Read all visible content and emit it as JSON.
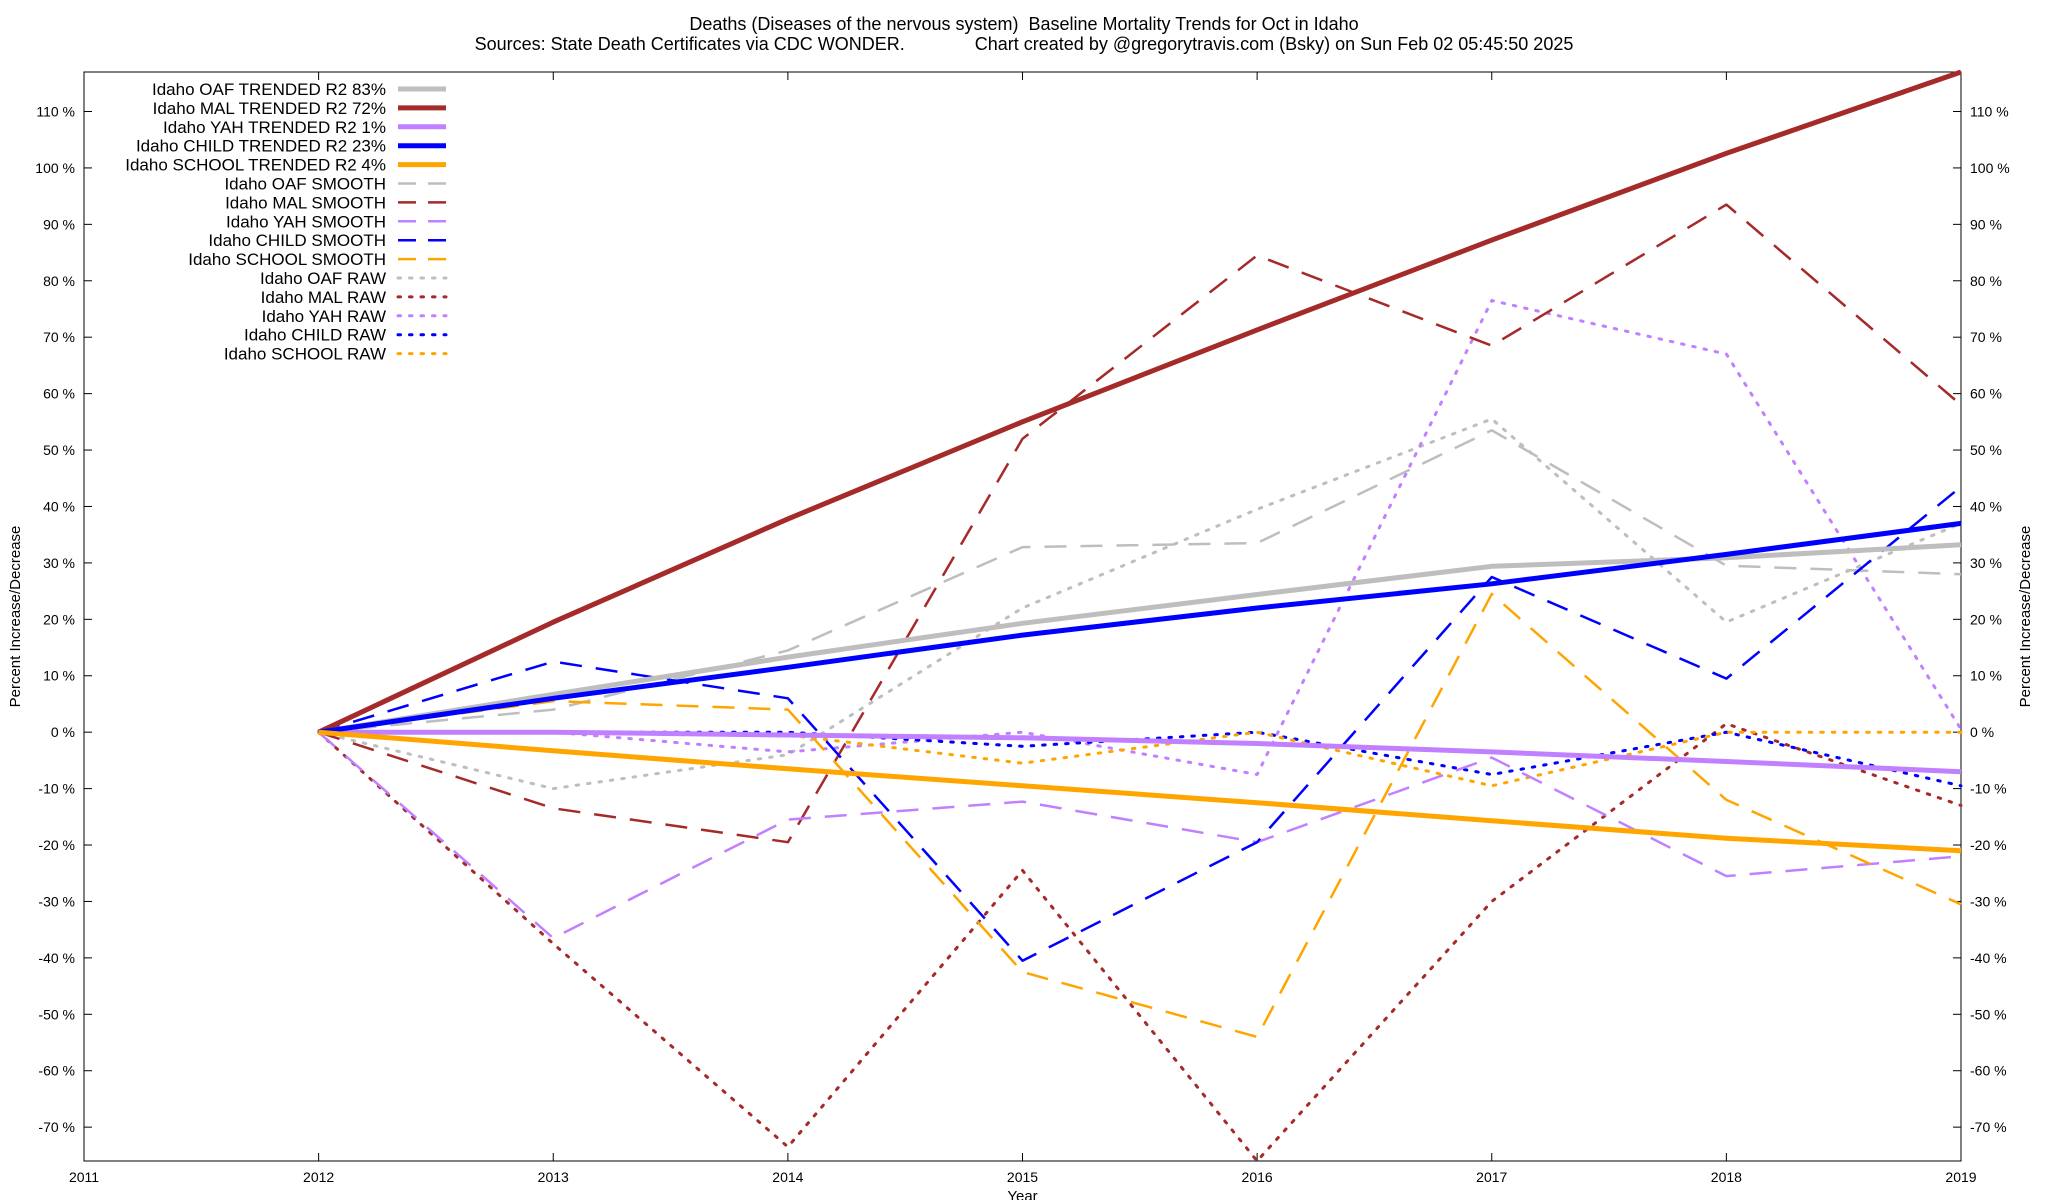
{
  "title": "Deaths (Diseases of the nervous system)  Baseline Mortality Trends for Oct in Idaho",
  "subtitle": "Sources: State Death Certificates via CDC WONDER.              Chart created by @gregorytravis.com (Bsky) on Sun Feb 02 05:45:50 2025",
  "chart_data": {
    "type": "line",
    "xlabel": "Year",
    "ylabel": "Percent Increase/Decrease",
    "y2label": "Percent Increase/Decrease",
    "xlim": [
      2011,
      2019
    ],
    "ylim": [
      -76,
      117
    ],
    "x_ticks": [
      "2011",
      "2012",
      "2013",
      "2014",
      "2015",
      "2016",
      "2017",
      "2018",
      "2019"
    ],
    "y_ticks": [
      110,
      100,
      90,
      80,
      70,
      60,
      50,
      40,
      30,
      20,
      10,
      0,
      -10,
      -20,
      -30,
      -40,
      -50,
      -60,
      -70
    ],
    "y_tick_labels": [
      "110 %",
      "100 %",
      "90 %",
      "80 %",
      "70 %",
      "60 %",
      "50 %",
      "40 %",
      "30 %",
      "20 %",
      "10 %",
      "0 %",
      "-10 %",
      "-20 %",
      "-30 %",
      "-40 %",
      "-50 %",
      "-60 %",
      "-70 %"
    ],
    "grid": false,
    "legend_position": "top-left",
    "x": [
      2012,
      2013,
      2014,
      2015,
      2016,
      2017,
      2018,
      2019
    ],
    "series": [
      {
        "name": "Idaho OAF TRENDED R2  83%",
        "style": "solid",
        "color": "#bebebe",
        "values": [
          0,
          6.7,
          13.3,
          19.3,
          24.4,
          29.4,
          30.9,
          33.2
        ]
      },
      {
        "name": "Idaho MAL TRENDED R2  72%",
        "style": "solid",
        "color": "#a52a2a",
        "values": [
          0,
          19.5,
          37.8,
          55,
          71.3,
          87.2,
          102.6,
          117
        ]
      },
      {
        "name": "Idaho YAH TRENDED R2  1%",
        "style": "solid",
        "color": "#c080ff",
        "values": [
          0,
          0,
          -0.5,
          -1,
          -2,
          -3.5,
          -5.2,
          -7
        ]
      },
      {
        "name": "Idaho CHILD TRENDED R2  23%",
        "style": "solid",
        "color": "#0000ff",
        "values": [
          0,
          6,
          11.5,
          17.2,
          22,
          26.3,
          31.5,
          37
        ]
      },
      {
        "name": "Idaho SCHOOL TRENDED R2  4%",
        "style": "solid",
        "color": "#ffa500",
        "values": [
          0,
          -3.3,
          -6.5,
          -9.5,
          -12.5,
          -15.7,
          -18.8,
          -21
        ]
      },
      {
        "name": "Idaho OAF SMOOTH",
        "style": "dashed",
        "color": "#bebebe",
        "values": [
          0,
          4,
          14.5,
          32.8,
          33.5,
          53.5,
          29.5,
          28
        ]
      },
      {
        "name": "Idaho MAL SMOOTH",
        "style": "dashed",
        "color": "#a52a2a",
        "values": [
          0,
          -13.5,
          -19.5,
          52,
          84.5,
          68.5,
          93.5,
          58
        ]
      },
      {
        "name": "Idaho YAH SMOOTH",
        "style": "dashed",
        "color": "#c080ff",
        "values": [
          0,
          -36.5,
          -15.5,
          -12.3,
          -19.5,
          -4.5,
          -25.5,
          -22
        ]
      },
      {
        "name": "Idaho CHILD SMOOTH",
        "style": "dashed",
        "color": "#0000ff",
        "values": [
          0,
          12.5,
          6,
          -40.5,
          -19.5,
          27.5,
          9.5,
          43.5
        ]
      },
      {
        "name": "Idaho SCHOOL SMOOTH",
        "style": "dashed",
        "color": "#ffa500",
        "values": [
          0,
          5.5,
          4,
          -42.5,
          -54,
          24.5,
          -12,
          -30.5
        ]
      },
      {
        "name": "Idaho OAF RAW",
        "style": "dotted",
        "color": "#bebebe",
        "values": [
          0,
          -10,
          -4,
          22,
          39.5,
          55.5,
          19.5,
          37
        ]
      },
      {
        "name": "Idaho MAL RAW",
        "style": "dotted",
        "color": "#a52a2a",
        "values": [
          0,
          -37.5,
          -73.5,
          -24.5,
          -76,
          -30,
          1.5,
          -13
        ]
      },
      {
        "name": "Idaho YAH RAW",
        "style": "dotted",
        "color": "#c080ff",
        "values": [
          0,
          0,
          -3.5,
          0,
          -7.5,
          76.5,
          67,
          0.5
        ]
      },
      {
        "name": "Idaho CHILD RAW",
        "style": "dotted",
        "color": "#0000ff",
        "values": [
          0,
          0,
          0,
          -2.5,
          0,
          -7.5,
          0,
          -9.5
        ]
      },
      {
        "name": "Idaho SCHOOL RAW",
        "style": "dotted",
        "color": "#ffa500",
        "values": [
          0,
          0,
          -0.5,
          -5.5,
          0,
          -9.5,
          0,
          0
        ]
      }
    ]
  }
}
